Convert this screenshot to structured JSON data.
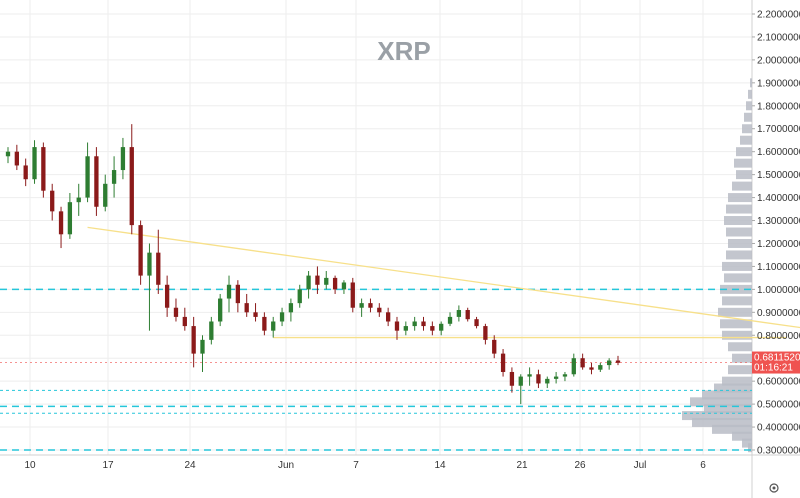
{
  "chart_data": {
    "type": "candlestick",
    "title": "XRP",
    "y_axis": {
      "min": 0.3,
      "max": 2.2,
      "ticks": [
        "2.20000000",
        "2.10000000",
        "2.00000000",
        "1.90000000",
        "1.80000000",
        "1.70000000",
        "1.60000000",
        "1.50000000",
        "1.40000000",
        "1.30000000",
        "1.20000000",
        "1.10000000",
        "1.00000000",
        "0.90000000",
        "0.80000000",
        "0.70000000",
        "0.60000000",
        "0.50000000",
        "0.40000000",
        "0.30000000"
      ],
      "tick_values": [
        2.2,
        2.1,
        2.0,
        1.9,
        1.8,
        1.7,
        1.6,
        1.5,
        1.4,
        1.3,
        1.2,
        1.1,
        1.0,
        0.9,
        0.8,
        0.7,
        0.6,
        0.5,
        0.4,
        0.3
      ]
    },
    "x_axis": {
      "labels": [
        "10",
        "17",
        "24",
        "Jun",
        "7",
        "14",
        "21",
        "26",
        "Jul",
        "6"
      ],
      "label_bar_index": [
        0,
        14,
        28,
        42,
        56,
        70,
        84,
        96,
        108,
        122
      ]
    },
    "current_price": {
      "value": 0.68115204,
      "label": "0.68115204",
      "countdown": "01:16:21",
      "color": "#ef5350"
    },
    "horizontal_levels": [
      {
        "value": 1.0,
        "style": "dashed-thick",
        "color": "#26c6da"
      },
      {
        "value": 0.56,
        "style": "dashed-thin",
        "color": "#26c6da"
      },
      {
        "value": 0.49,
        "style": "dashed-thick",
        "color": "#26c6da"
      },
      {
        "value": 0.46,
        "style": "dashed-thin",
        "color": "#26c6da"
      },
      {
        "value": 0.3,
        "style": "dashed-thick",
        "color": "#26c6da"
      }
    ],
    "trendlines": [
      {
        "from": [
          9,
          1.27
        ],
        "to": [
          118,
          0.68
        ],
        "color": "#f7e08a"
      },
      {
        "from": [
          30,
          0.79
        ],
        "to": [
          88,
          0.79
        ],
        "color": "#f7e08a"
      },
      {
        "from": [
          108,
          0.66
        ],
        "to": [
          115,
          0.64
        ],
        "color": "#f7e08a"
      }
    ],
    "candles": [
      [
        1.58,
        1.62,
        1.55,
        1.6
      ],
      [
        1.6,
        1.63,
        1.52,
        1.54
      ],
      [
        1.54,
        1.57,
        1.45,
        1.48
      ],
      [
        1.48,
        1.65,
        1.46,
        1.62
      ],
      [
        1.62,
        1.64,
        1.4,
        1.43
      ],
      [
        1.43,
        1.46,
        1.3,
        1.34
      ],
      [
        1.34,
        1.36,
        1.18,
        1.24
      ],
      [
        1.24,
        1.42,
        1.22,
        1.38
      ],
      [
        1.38,
        1.46,
        1.32,
        1.4
      ],
      [
        1.4,
        1.64,
        1.38,
        1.58
      ],
      [
        1.58,
        1.62,
        1.32,
        1.36
      ],
      [
        1.36,
        1.5,
        1.34,
        1.46
      ],
      [
        1.46,
        1.58,
        1.4,
        1.52
      ],
      [
        1.52,
        1.66,
        1.48,
        1.62
      ],
      [
        1.62,
        1.72,
        1.24,
        1.28
      ],
      [
        1.28,
        1.3,
        1.02,
        1.06
      ],
      [
        1.06,
        1.2,
        0.82,
        1.16
      ],
      [
        1.16,
        1.26,
        0.98,
        1.02
      ],
      [
        1.02,
        1.06,
        0.88,
        0.92
      ],
      [
        0.92,
        0.96,
        0.86,
        0.88
      ],
      [
        0.88,
        0.92,
        0.82,
        0.84
      ],
      [
        0.84,
        0.88,
        0.66,
        0.72
      ],
      [
        0.72,
        0.8,
        0.64,
        0.78
      ],
      [
        0.78,
        0.88,
        0.76,
        0.86
      ],
      [
        0.86,
        0.98,
        0.84,
        0.96
      ],
      [
        0.96,
        1.06,
        0.9,
        1.02
      ],
      [
        1.02,
        1.04,
        0.9,
        0.94
      ],
      [
        0.94,
        0.98,
        0.88,
        0.9
      ],
      [
        0.9,
        0.94,
        0.86,
        0.88
      ],
      [
        0.88,
        0.9,
        0.8,
        0.82
      ],
      [
        0.82,
        0.88,
        0.79,
        0.86
      ],
      [
        0.86,
        0.92,
        0.84,
        0.9
      ],
      [
        0.9,
        0.96,
        0.86,
        0.94
      ],
      [
        0.94,
        1.02,
        0.92,
        1.0
      ],
      [
        1.0,
        1.08,
        0.96,
        1.06
      ],
      [
        1.06,
        1.1,
        0.98,
        1.02
      ],
      [
        1.02,
        1.08,
        1.0,
        1.05
      ],
      [
        1.05,
        1.06,
        0.98,
        1.0
      ],
      [
        1.0,
        1.04,
        0.98,
        1.03
      ],
      [
        1.03,
        1.05,
        0.9,
        0.92
      ],
      [
        0.92,
        0.96,
        0.88,
        0.94
      ],
      [
        0.94,
        0.96,
        0.9,
        0.92
      ],
      [
        0.92,
        0.94,
        0.88,
        0.9
      ],
      [
        0.9,
        0.92,
        0.84,
        0.86
      ],
      [
        0.86,
        0.88,
        0.78,
        0.82
      ],
      [
        0.82,
        0.86,
        0.8,
        0.84
      ],
      [
        0.84,
        0.88,
        0.82,
        0.86
      ],
      [
        0.86,
        0.88,
        0.82,
        0.84
      ],
      [
        0.84,
        0.86,
        0.8,
        0.82
      ],
      [
        0.82,
        0.86,
        0.8,
        0.85
      ],
      [
        0.85,
        0.9,
        0.84,
        0.88
      ],
      [
        0.88,
        0.93,
        0.86,
        0.91
      ],
      [
        0.91,
        0.92,
        0.86,
        0.87
      ],
      [
        0.87,
        0.88,
        0.83,
        0.84
      ],
      [
        0.84,
        0.85,
        0.76,
        0.78
      ],
      [
        0.78,
        0.8,
        0.7,
        0.72
      ],
      [
        0.72,
        0.74,
        0.62,
        0.64
      ],
      [
        0.64,
        0.66,
        0.55,
        0.58
      ],
      [
        0.58,
        0.63,
        0.5,
        0.62
      ],
      [
        0.62,
        0.66,
        0.58,
        0.63
      ],
      [
        0.63,
        0.65,
        0.57,
        0.59
      ],
      [
        0.59,
        0.62,
        0.57,
        0.61
      ],
      [
        0.61,
        0.64,
        0.59,
        0.62
      ],
      [
        0.62,
        0.64,
        0.6,
        0.63
      ],
      [
        0.63,
        0.72,
        0.62,
        0.7
      ],
      [
        0.7,
        0.72,
        0.65,
        0.66
      ],
      [
        0.66,
        0.68,
        0.63,
        0.65
      ],
      [
        0.65,
        0.68,
        0.64,
        0.67
      ],
      [
        0.67,
        0.7,
        0.65,
        0.69
      ],
      [
        0.69,
        0.71,
        0.67,
        0.68
      ]
    ],
    "candle_x_start": 0,
    "candle_x_step": 1.75,
    "volume_profile": "horizontal histogram on right side"
  }
}
